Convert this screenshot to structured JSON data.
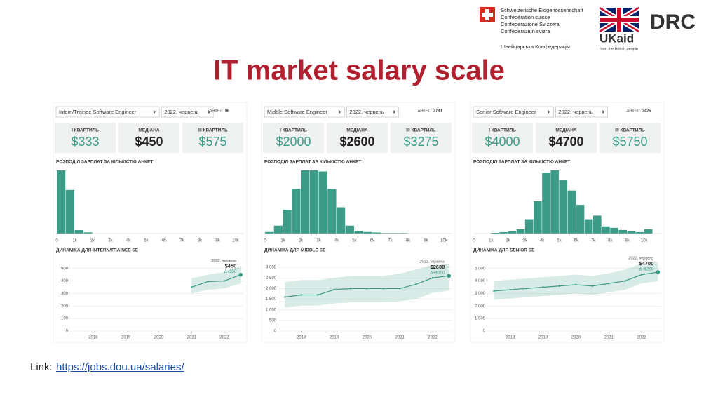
{
  "logos": {
    "swiss": [
      "Schweizerische Eidgenossenschaft",
      "Confédération suisse",
      "Confederazione Svizzera",
      "Confederaziun svizra",
      "Швейцарська Конфедерація"
    ],
    "ukaid": "UKaid",
    "ukaid_sub": "from the British people",
    "drc": "DRC"
  },
  "title": "IT market salary scale",
  "link_label": "Link:",
  "link": "https://jobs.dou.ua/salaries/",
  "panels": [
    {
      "role": "Intern/Trainee Software Engineer",
      "period": "2022, червень",
      "responses_label": "АНКЕТ:",
      "responses": "96",
      "quartiles": [
        {
          "label": "I КВАРТИЛЬ",
          "value": "$333"
        },
        {
          "label": "МЕДІАНА",
          "value": "$450"
        },
        {
          "label": "III КВАРТИЛЬ",
          "value": "$575"
        }
      ]
    },
    {
      "role": "Middle Software Engineer",
      "period": "2022, червень",
      "responses_label": "АНКЕТ:",
      "responses": "2780",
      "quartiles": [
        {
          "label": "I КВАРТИЛЬ",
          "value": "$2000"
        },
        {
          "label": "МЕДІАНА",
          "value": "$2600"
        },
        {
          "label": "III КВАРТИЛЬ",
          "value": "$3275"
        }
      ]
    },
    {
      "role": "Senior Software Engineer",
      "period": "2022, червень",
      "responses_label": "АНКЕТ:",
      "responses": "2425",
      "quartiles": [
        {
          "label": "I КВАРТИЛЬ",
          "value": "$4000"
        },
        {
          "label": "МЕДІАНА",
          "value": "$4700"
        },
        {
          "label": "III КВАРТИЛЬ",
          "value": "$5750"
        }
      ]
    }
  ],
  "chart_data": [
    {
      "type": "histogram",
      "title": "РОЗПОДІЛ ЗАРПЛАТ ЗА КІЛЬКІСТЮ АНКЕТ",
      "color": "#3d9c87",
      "bins": [
        0,
        500,
        1000,
        1500,
        2000,
        2500,
        3000,
        3500,
        4000,
        4500,
        5000,
        5500,
        6000,
        6500,
        7000,
        7500,
        8000,
        8500,
        9000,
        9500,
        10000
      ],
      "values": [
        55,
        38,
        3,
        1,
        0,
        0,
        0,
        0,
        0,
        0,
        0,
        0,
        0,
        0,
        0,
        0,
        0,
        0,
        0,
        0
      ],
      "xlim": [
        0,
        10000
      ],
      "xticks": [
        0,
        {
          "value": 1000,
          "label": "1k"
        },
        {
          "value": 2000,
          "label": "2k"
        },
        {
          "value": 3000,
          "label": "3k"
        },
        {
          "value": 4000,
          "label": "4k"
        },
        {
          "value": 5000,
          "label": "5k"
        },
        {
          "value": 6000,
          "label": "6k"
        },
        {
          "value": 7000,
          "label": "7k"
        },
        {
          "value": 8000,
          "label": "8k"
        },
        {
          "value": 9000,
          "label": "9k"
        },
        {
          "value": 10000,
          "label": "10k"
        }
      ]
    },
    {
      "type": "line",
      "title": "ДИНАМІКА ДЛЯ INTERN/TRAINEE SE",
      "x": [
        2021,
        2021.5,
        2022,
        2022.5
      ],
      "series": [
        {
          "color": "#3d9c87",
          "values": [
            350,
            395,
            400,
            450
          ],
          "band_low": [
            300,
            330,
            340,
            380
          ],
          "band_high": [
            420,
            450,
            470,
            520
          ]
        }
      ],
      "xlim": [
        2017.3,
        2022.6
      ],
      "xticks": [
        2018,
        2019,
        2020,
        2021,
        2022
      ],
      "ylim": [
        0,
        560
      ],
      "yticks": [
        0,
        100,
        200,
        300,
        400,
        500
      ],
      "grid": true,
      "annotation": {
        "period": "2022, червень",
        "value": "$450",
        "delta": "Δ+$50"
      }
    },
    {
      "type": "histogram",
      "title": "РОЗПОДІЛ ЗАРПЛАТ ЗА КІЛЬКІСТЮ АНКЕТ",
      "color": "#3d9c87",
      "bins": [
        0,
        500,
        1000,
        1500,
        2000,
        2500,
        3000,
        3500,
        4000,
        4500,
        5000,
        5500,
        6000,
        6500,
        7000,
        7500,
        8000,
        8500,
        9000,
        9500,
        10000
      ],
      "values": [
        3,
        15,
        45,
        85,
        120,
        120,
        118,
        85,
        50,
        15,
        5,
        3,
        2,
        1,
        1,
        1,
        0,
        0,
        0,
        0
      ],
      "xlim": [
        0,
        10000
      ],
      "xticks": [
        0,
        {
          "value": 1000,
          "label": "1k"
        },
        {
          "value": 2000,
          "label": "2k"
        },
        {
          "value": 3000,
          "label": "3k"
        },
        {
          "value": 4000,
          "label": "4k"
        },
        {
          "value": 5000,
          "label": "5k"
        },
        {
          "value": 6000,
          "label": "6k"
        },
        {
          "value": 7000,
          "label": "7k"
        },
        {
          "value": 8000,
          "label": "8k"
        },
        {
          "value": 9000,
          "label": "9k"
        },
        {
          "value": 10000,
          "label": "10k"
        }
      ]
    },
    {
      "type": "line",
      "title": "ДИНАМІКА ДЛЯ MIDDLE SE",
      "x": [
        2017.5,
        2018,
        2018.5,
        2019,
        2019.5,
        2020,
        2020.5,
        2021,
        2021.5,
        2022,
        2022.5
      ],
      "series": [
        {
          "color": "#3d9c87",
          "values": [
            1600,
            1700,
            1700,
            1950,
            2000,
            2000,
            2000,
            2000,
            2200,
            2500,
            2600
          ],
          "band_low": [
            1100,
            1200,
            1200,
            1300,
            1350,
            1350,
            1350,
            1400,
            1500,
            1800,
            1900
          ],
          "band_high": [
            2300,
            2400,
            2400,
            2500,
            2600,
            2600,
            2600,
            2700,
            2900,
            3100,
            3150
          ]
        }
      ],
      "xlim": [
        2017.3,
        2022.6
      ],
      "xticks": [
        2018,
        2019,
        2020,
        2021,
        2022
      ],
      "ylim": [
        0,
        3300
      ],
      "yticks": [
        0,
        500,
        {
          "value": 1000,
          "label": "1 000"
        },
        {
          "value": 1500,
          "label": "1 500"
        },
        {
          "value": 2000,
          "label": "2 000"
        },
        {
          "value": 2500,
          "label": "2 500"
        },
        {
          "value": 3000,
          "label": "3 000"
        }
      ],
      "grid": true,
      "annotation": {
        "period": "2022, червень",
        "value": "$2600",
        "delta": "Δ+$100"
      }
    },
    {
      "type": "histogram",
      "title": "РОЗПОДІЛ ЗАРПЛАТ ЗА КІЛЬКІСТЮ АНКЕТ",
      "color": "#3d9c87",
      "bins": [
        0,
        500,
        1000,
        1500,
        2000,
        2500,
        3000,
        3500,
        4000,
        4500,
        5000,
        5500,
        6000,
        6500,
        7000,
        7500,
        8000,
        8500,
        9000,
        9500,
        10000,
        10500
      ],
      "values": [
        0,
        0,
        1,
        2,
        3,
        6,
        20,
        45,
        85,
        88,
        75,
        60,
        40,
        20,
        25,
        10,
        8,
        5,
        3,
        2,
        6
      ],
      "xlim": [
        0,
        10500
      ],
      "xticks": [
        0,
        {
          "value": 1000,
          "label": "1k"
        },
        {
          "value": 2000,
          "label": "2k"
        },
        {
          "value": 3000,
          "label": "3k"
        },
        {
          "value": 4000,
          "label": "4k"
        },
        {
          "value": 5000,
          "label": "5k"
        },
        {
          "value": 6000,
          "label": "6k"
        },
        {
          "value": 7000,
          "label": "7k"
        },
        {
          "value": 8000,
          "label": "8k"
        },
        {
          "value": 9000,
          "label": "9k"
        },
        {
          "value": 10000,
          "label": "10k"
        }
      ]
    },
    {
      "type": "line",
      "title": "ДИНАМІКА ДЛЯ SENIOR SE",
      "x": [
        2017.5,
        2018,
        2018.5,
        2019,
        2019.5,
        2020,
        2020.5,
        2021,
        2021.5,
        2022,
        2022.5
      ],
      "series": [
        {
          "color": "#3d9c87",
          "values": [
            3200,
            3300,
            3400,
            3500,
            3600,
            3700,
            3600,
            3800,
            4000,
            4500,
            4700
          ],
          "band_low": [
            2500,
            2600,
            2700,
            2800,
            2900,
            3000,
            2900,
            3100,
            3300,
            3800,
            4000
          ],
          "band_high": [
            4000,
            4100,
            4200,
            4300,
            4400,
            4500,
            4400,
            4600,
            4900,
            5400,
            5500
          ]
        }
      ],
      "xlim": [
        2017.3,
        2022.6
      ],
      "xticks": [
        2018,
        2019,
        2020,
        2021,
        2022
      ],
      "ylim": [
        0,
        5600
      ],
      "yticks": [
        0,
        {
          "value": 1000,
          "label": "1 000"
        },
        {
          "value": 2000,
          "label": "2 000"
        },
        {
          "value": 3000,
          "label": "3 000"
        },
        {
          "value": 4000,
          "label": "4 000"
        },
        {
          "value": 5000,
          "label": "5 000"
        }
      ],
      "grid": true,
      "annotation": {
        "period": "2022, червень",
        "value": "$4700",
        "delta": "Δ+$200"
      }
    }
  ]
}
